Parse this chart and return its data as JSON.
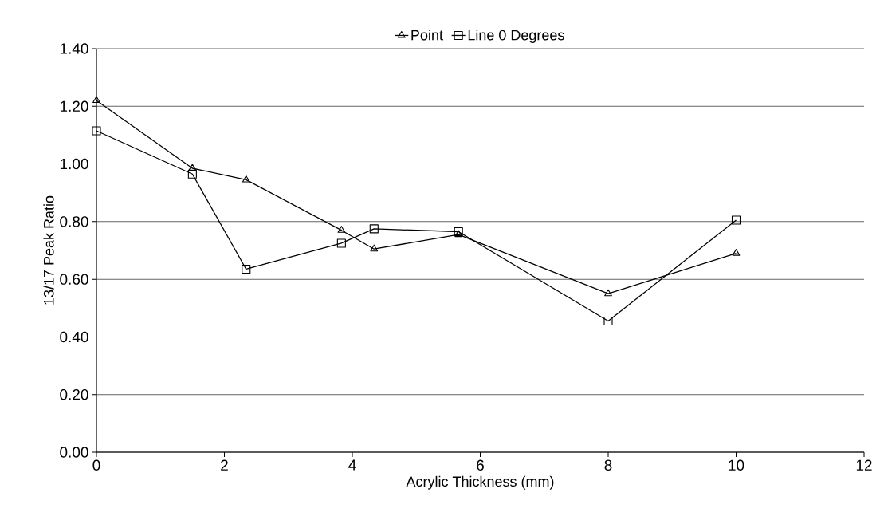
{
  "chart_data": {
    "type": "line",
    "xlabel": "Acrylic Thickness (mm)",
    "ylabel": "13/17 Peak Ratio",
    "x": [
      0,
      1.5,
      2.34,
      3.83,
      4.34,
      5.66,
      8,
      10
    ],
    "series": [
      {
        "name": "Point",
        "color": "#000000",
        "marker": "triangle",
        "values": [
          1.22,
          0.985,
          0.945,
          0.77,
          0.705,
          0.755,
          0.55,
          0.69
        ]
      },
      {
        "name": "Line 0 Degrees",
        "color": "#000000",
        "marker": "square",
        "values": [
          1.115,
          0.965,
          0.635,
          0.725,
          0.775,
          0.765,
          0.455,
          0.805
        ]
      }
    ],
    "xlim": [
      0,
      12
    ],
    "xticks": [
      0,
      2,
      4,
      6,
      8,
      10,
      12
    ],
    "ylim": [
      0,
      1.4
    ],
    "yticks": [
      {
        "value": 0,
        "label": "0.00"
      },
      {
        "value": 0.2,
        "label": "0.20"
      },
      {
        "value": 0.4,
        "label": "0.40"
      },
      {
        "value": 0.6,
        "label": "0.60"
      },
      {
        "value": 0.8,
        "label": "0.80"
      },
      {
        "value": 1.0,
        "label": "1.00"
      },
      {
        "value": 1.2,
        "label": "1.20"
      },
      {
        "value": 1.4,
        "label": "1.40"
      }
    ],
    "grid": "y",
    "legend": "top",
    "line_style": "solid"
  }
}
